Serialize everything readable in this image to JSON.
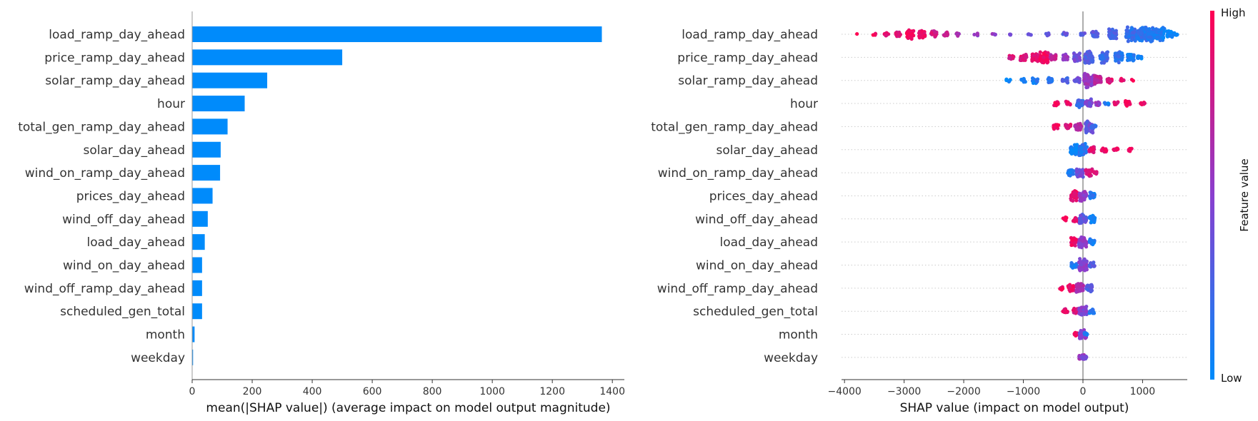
{
  "colors": {
    "bar": "#008bfb",
    "low": "#008bfb",
    "high": "#ff0052",
    "zero_line": "#999999"
  },
  "features": [
    "load_ramp_day_ahead",
    "price_ramp_day_ahead",
    "solar_ramp_day_ahead",
    "hour",
    "total_gen_ramp_day_ahead",
    "solar_day_ahead",
    "wind_on_ramp_day_ahead",
    "prices_day_ahead",
    "wind_off_day_ahead",
    "load_day_ahead",
    "wind_on_day_ahead",
    "wind_off_ramp_day_ahead",
    "scheduled_gen_total",
    "month",
    "weekday"
  ],
  "chart_data": [
    {
      "type": "bar",
      "orientation": "horizontal",
      "categories": [
        "load_ramp_day_ahead",
        "price_ramp_day_ahead",
        "solar_ramp_day_ahead",
        "hour",
        "total_gen_ramp_day_ahead",
        "solar_day_ahead",
        "wind_on_ramp_day_ahead",
        "prices_day_ahead",
        "wind_off_day_ahead",
        "load_day_ahead",
        "wind_on_day_ahead",
        "wind_off_ramp_day_ahead",
        "scheduled_gen_total",
        "month",
        "weekday"
      ],
      "values": [
        1365,
        500,
        250,
        175,
        118,
        95,
        93,
        68,
        52,
        42,
        33,
        33,
        33,
        8,
        3
      ],
      "xlabel": "mean(|SHAP value|) (average impact on model output magnitude)",
      "xlim": [
        0,
        1440
      ],
      "xticks": [
        0,
        200,
        400,
        600,
        800,
        1000,
        1200,
        1400
      ],
      "grid": false
    },
    {
      "type": "scatter",
      "subtype": "beeswarm",
      "categories": [
        "load_ramp_day_ahead",
        "price_ramp_day_ahead",
        "solar_ramp_day_ahead",
        "hour",
        "total_gen_ramp_day_ahead",
        "solar_day_ahead",
        "wind_on_ramp_day_ahead",
        "prices_day_ahead",
        "wind_off_day_ahead",
        "load_day_ahead",
        "wind_on_day_ahead",
        "wind_off_ramp_day_ahead",
        "scheduled_gen_total",
        "month",
        "weekday"
      ],
      "xlabel": "SHAP value (impact on model output)",
      "xlim": [
        -4050,
        1750
      ],
      "xticks": [
        -4000,
        -3000,
        -2000,
        -1000,
        0,
        1000
      ],
      "xtick_labels": [
        "−4000",
        "−3000",
        "−2000",
        "−1000",
        "0",
        "1000"
      ],
      "colorbar": {
        "label": "Feature value",
        "high_label": "High",
        "low_label": "Low"
      },
      "series": [
        {
          "clusters": [
            [
              -3800,
              0.92,
              1
            ],
            [
              -3500,
              0.95,
              4
            ],
            [
              -3300,
              0.92,
              10
            ],
            [
              -3100,
              0.85,
              22
            ],
            [
              -2900,
              0.93,
              40
            ],
            [
              -2700,
              0.88,
              28
            ],
            [
              -2500,
              0.8,
              22
            ],
            [
              -2300,
              0.7,
              12
            ],
            [
              -2100,
              0.6,
              8
            ],
            [
              -1800,
              0.55,
              5
            ],
            [
              -1500,
              0.5,
              4
            ],
            [
              -1200,
              0.45,
              4
            ],
            [
              -900,
              0.4,
              4
            ],
            [
              -600,
              0.38,
              5
            ],
            [
              -300,
              0.35,
              8
            ],
            [
              0,
              0.32,
              10
            ],
            [
              200,
              0.3,
              28
            ],
            [
              500,
              0.25,
              45
            ],
            [
              800,
              0.18,
              70
            ],
            [
              1000,
              0.15,
              95
            ],
            [
              1150,
              0.12,
              70
            ],
            [
              1300,
              0.08,
              55
            ],
            [
              1450,
              0.04,
              25
            ],
            [
              1550,
              0.02,
              6
            ]
          ]
        },
        {
          "clusters": [
            [
              -1200,
              0.8,
              12
            ],
            [
              -1000,
              0.85,
              30
            ],
            [
              -800,
              0.88,
              35
            ],
            [
              -650,
              0.95,
              50
            ],
            [
              -500,
              0.72,
              22
            ],
            [
              -300,
              0.55,
              22
            ],
            [
              -100,
              0.4,
              35
            ],
            [
              100,
              0.3,
              55
            ],
            [
              350,
              0.22,
              45
            ],
            [
              600,
              0.15,
              45
            ],
            [
              800,
              0.1,
              35
            ],
            [
              950,
              0.05,
              10
            ]
          ]
        },
        {
          "clusters": [
            [
              -1250,
              0.02,
              6
            ],
            [
              -1000,
              0.05,
              14
            ],
            [
              -800,
              0.1,
              22
            ],
            [
              -550,
              0.18,
              18
            ],
            [
              -300,
              0.28,
              18
            ],
            [
              -100,
              0.4,
              20
            ],
            [
              100,
              0.55,
              70
            ],
            [
              250,
              0.7,
              35
            ],
            [
              450,
              0.85,
              18
            ],
            [
              650,
              0.9,
              8
            ],
            [
              850,
              0.95,
              2
            ]
          ]
        },
        {
          "clusters": [
            [
              -450,
              0.92,
              14
            ],
            [
              -250,
              0.88,
              12
            ],
            [
              -50,
              0.2,
              35
            ],
            [
              100,
              0.45,
              35
            ],
            [
              250,
              0.55,
              12
            ],
            [
              400,
              0.1,
              8
            ],
            [
              550,
              0.92,
              10
            ],
            [
              750,
              0.95,
              16
            ],
            [
              1000,
              0.95,
              10
            ]
          ]
        },
        {
          "clusters": [
            [
              -450,
              0.95,
              16
            ],
            [
              -250,
              0.88,
              18
            ],
            [
              -80,
              0.7,
              30
            ],
            [
              100,
              0.35,
              50
            ],
            [
              180,
              0.2,
              8
            ]
          ]
        },
        {
          "clusters": [
            [
              -150,
              0.05,
              40
            ],
            [
              0,
              0.15,
              50
            ],
            [
              150,
              0.85,
              20
            ],
            [
              350,
              0.92,
              18
            ],
            [
              550,
              0.9,
              10
            ],
            [
              800,
              0.95,
              6
            ]
          ]
        },
        {
          "clusters": [
            [
              -200,
              0.1,
              30
            ],
            [
              -50,
              0.4,
              35
            ],
            [
              100,
              0.85,
              35
            ],
            [
              200,
              0.9,
              8
            ]
          ]
        },
        {
          "clusters": [
            [
              -150,
              0.92,
              40
            ],
            [
              0,
              0.55,
              40
            ],
            [
              150,
              0.12,
              25
            ]
          ]
        },
        {
          "clusters": [
            [
              -300,
              0.95,
              14
            ],
            [
              -120,
              0.9,
              18
            ],
            [
              0,
              0.35,
              40
            ],
            [
              150,
              0.05,
              30
            ]
          ]
        },
        {
          "clusters": [
            [
              -150,
              0.9,
              30
            ],
            [
              0,
              0.5,
              50
            ],
            [
              150,
              0.1,
              20
            ]
          ]
        },
        {
          "clusters": [
            [
              -150,
              0.1,
              20
            ],
            [
              0,
              0.5,
              50
            ],
            [
              150,
              0.3,
              20
            ]
          ]
        },
        {
          "clusters": [
            [
              -350,
              0.95,
              10
            ],
            [
              -200,
              0.92,
              25
            ],
            [
              -50,
              0.6,
              40
            ],
            [
              100,
              0.3,
              30
            ]
          ]
        },
        {
          "clusters": [
            [
              -300,
              0.9,
              16
            ],
            [
              -120,
              0.85,
              20
            ],
            [
              0,
              0.45,
              45
            ],
            [
              150,
              0.1,
              18
            ]
          ]
        },
        {
          "clusters": [
            [
              -120,
              0.95,
              10
            ],
            [
              0,
              0.5,
              35
            ],
            [
              40,
              0.1,
              8
            ]
          ]
        },
        {
          "clusters": [
            [
              -20,
              0.6,
              20
            ],
            [
              20,
              0.4,
              18
            ]
          ]
        }
      ]
    }
  ]
}
